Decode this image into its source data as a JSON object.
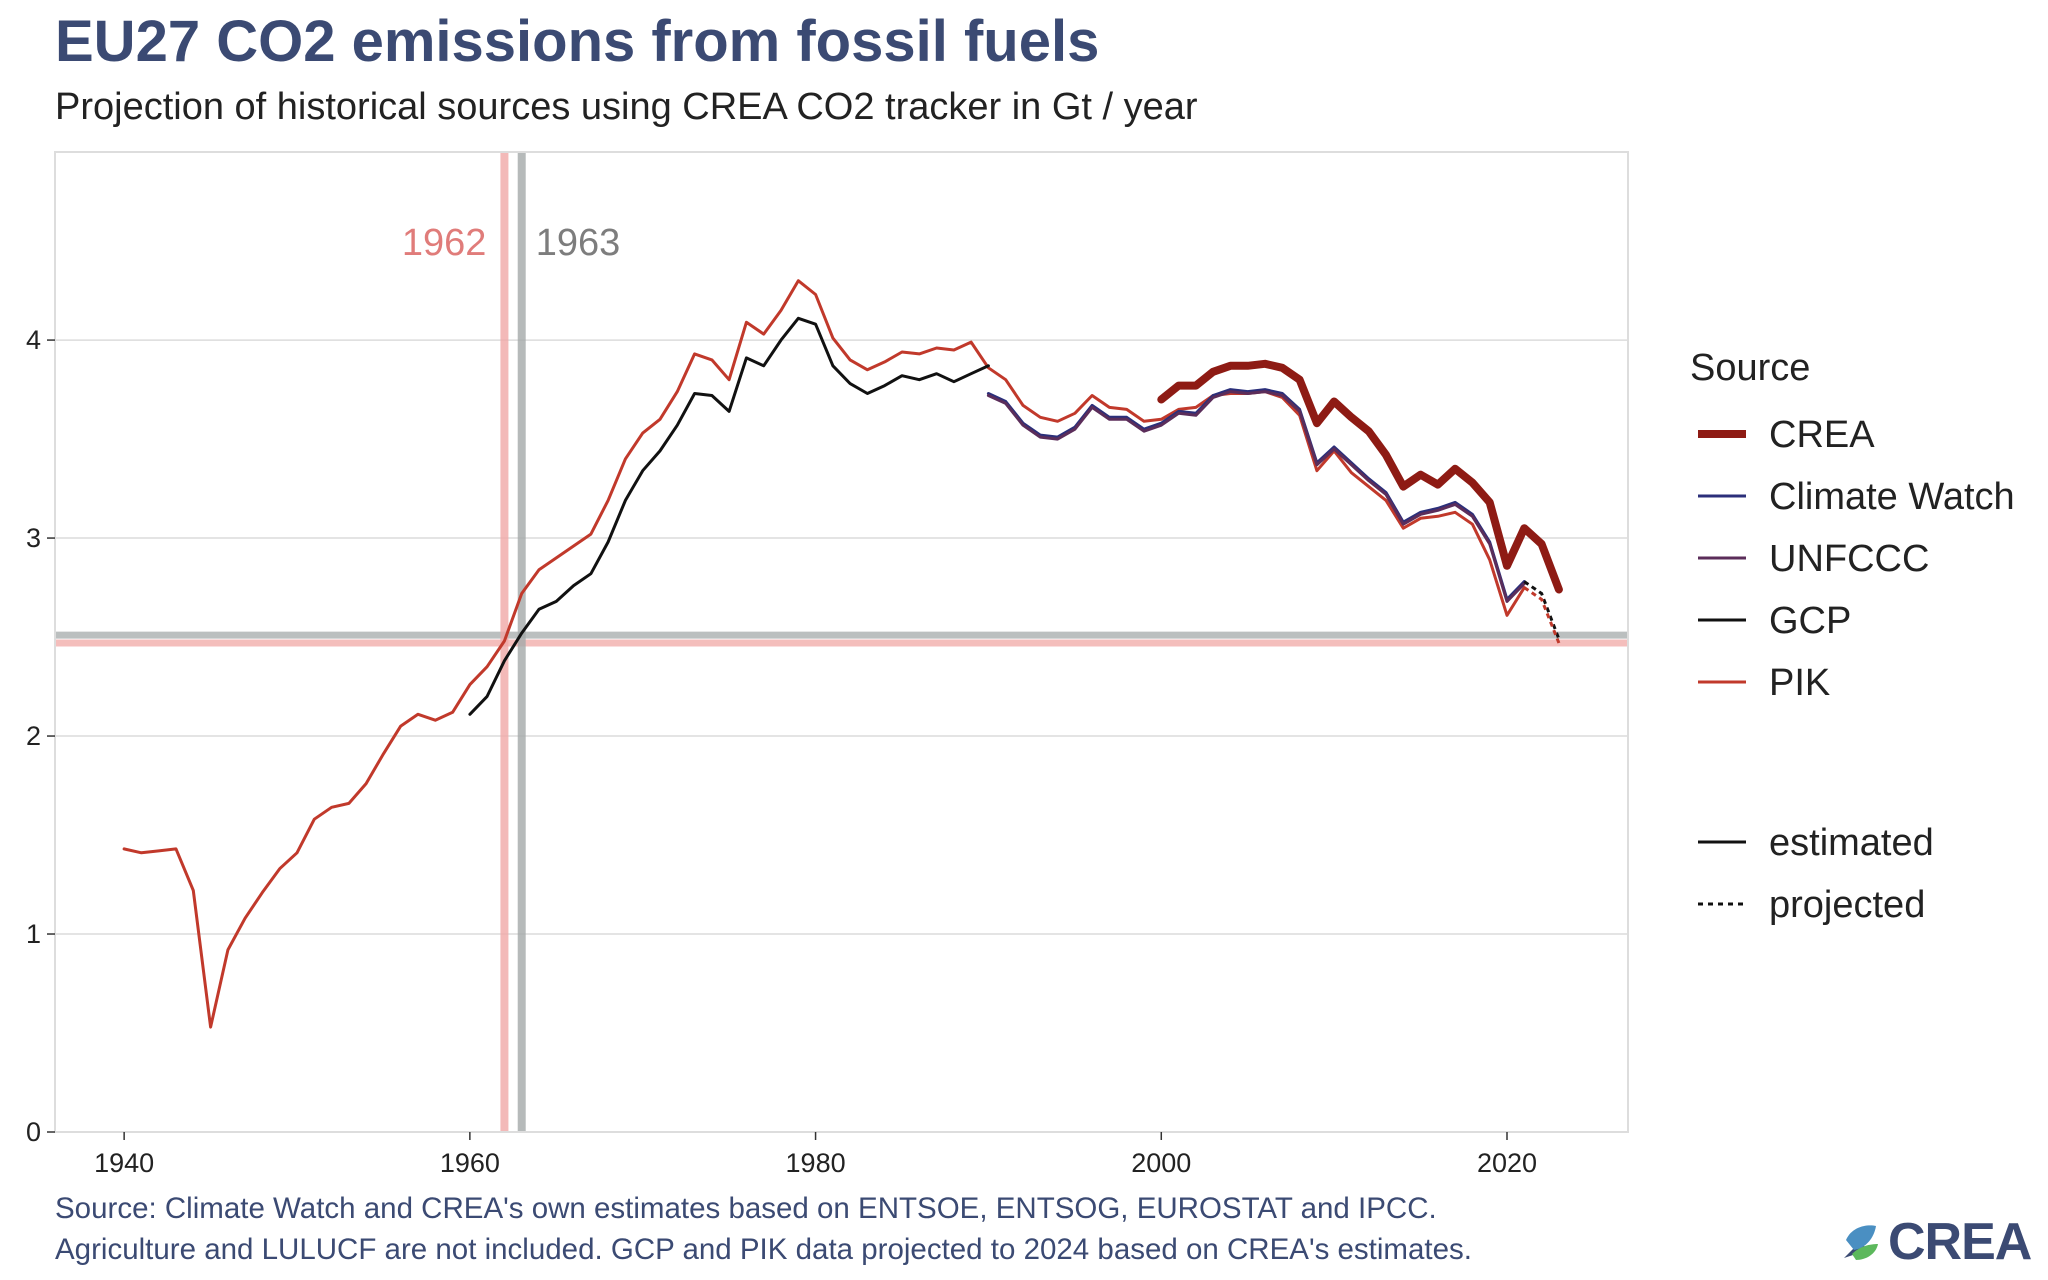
{
  "title": "EU27 CO2 emissions from fossil fuels",
  "subtitle": "Projection of historical sources using CREA CO2 tracker in Gt / year",
  "source_lines": [
    "Source: Climate Watch and CREA's own estimates based on ENTSOE, ENTSOG, EUROSTAT and IPCC.",
    "Agriculture and LULUCF are not included. GCP and PIK data projected to 2024 based on CREA's estimates."
  ],
  "logo": {
    "text": "CREA",
    "icon": "crea-leaf-icon"
  },
  "chart_data": {
    "type": "line",
    "xlim": [
      1936,
      2027
    ],
    "ylim": [
      0,
      4.95
    ],
    "x_ticks": [
      1940,
      1960,
      1980,
      2000,
      2020
    ],
    "y_ticks": [
      0,
      1,
      2,
      3,
      4
    ],
    "grid": true,
    "legend_position": "right",
    "legend_title": "Source",
    "series": [
      {
        "name": "PIK",
        "color": "#c1392b",
        "width": 3,
        "x": [
          1940,
          1941,
          1942,
          1943,
          1944,
          1945,
          1946,
          1947,
          1948,
          1949,
          1950,
          1951,
          1952,
          1953,
          1954,
          1955,
          1956,
          1957,
          1958,
          1959,
          1960,
          1961,
          1962,
          1963,
          1964,
          1965,
          1966,
          1967,
          1968,
          1969,
          1970,
          1971,
          1972,
          1973,
          1974,
          1975,
          1976,
          1977,
          1978,
          1979,
          1980,
          1981,
          1982,
          1983,
          1984,
          1985,
          1986,
          1987,
          1988,
          1989,
          1990,
          1991,
          1992,
          1993,
          1994,
          1995,
          1996,
          1997,
          1998,
          1999,
          2000,
          2001,
          2002,
          2003,
          2004,
          2005,
          2006,
          2007,
          2008,
          2009,
          2010,
          2011,
          2012,
          2013,
          2014,
          2015,
          2016,
          2017,
          2018,
          2019,
          2020,
          2021
        ],
        "y": [
          1.43,
          1.41,
          1.42,
          1.43,
          1.22,
          0.53,
          0.92,
          1.08,
          1.21,
          1.33,
          1.41,
          1.58,
          1.64,
          1.66,
          1.76,
          1.91,
          2.05,
          2.11,
          2.08,
          2.12,
          2.26,
          2.35,
          2.48,
          2.72,
          2.84,
          2.9,
          2.96,
          3.02,
          3.19,
          3.4,
          3.53,
          3.6,
          3.74,
          3.93,
          3.9,
          3.8,
          4.09,
          4.03,
          4.15,
          4.3,
          4.23,
          4.01,
          3.9,
          3.85,
          3.89,
          3.94,
          3.93,
          3.96,
          3.95,
          3.99,
          3.86,
          3.8,
          3.67,
          3.61,
          3.59,
          3.63,
          3.72,
          3.66,
          3.65,
          3.59,
          3.6,
          3.65,
          3.66,
          3.72,
          3.73,
          3.73,
          3.74,
          3.71,
          3.62,
          3.34,
          3.44,
          3.33,
          3.26,
          3.19,
          3.05,
          3.1,
          3.11,
          3.13,
          3.07,
          2.89,
          2.61,
          2.75
        ]
      },
      {
        "name": "GCP",
        "color": "#111111",
        "width": 3,
        "x": [
          1960,
          1961,
          1962,
          1963,
          1964,
          1965,
          1966,
          1967,
          1968,
          1969,
          1970,
          1971,
          1972,
          1973,
          1974,
          1975,
          1976,
          1977,
          1978,
          1979,
          1980,
          1981,
          1982,
          1983,
          1984,
          1985,
          1986,
          1987,
          1988,
          1989,
          1990
        ],
        "y": [
          2.11,
          2.2,
          2.38,
          2.52,
          2.64,
          2.68,
          2.76,
          2.82,
          2.98,
          3.19,
          3.34,
          3.44,
          3.57,
          3.73,
          3.72,
          3.64,
          3.91,
          3.87,
          4.0,
          4.11,
          4.08,
          3.87,
          3.78,
          3.73,
          3.77,
          3.82,
          3.8,
          3.83,
          3.79,
          3.83,
          3.87
        ]
      },
      {
        "name": "Climate Watch",
        "color": "#2b2f7a",
        "width": 3,
        "x": [
          1990,
          1991,
          1992,
          1993,
          1994,
          1995,
          1996,
          1997,
          1998,
          1999,
          2000,
          2001,
          2002,
          2003,
          2004,
          2005,
          2006,
          2007,
          2008,
          2009,
          2010,
          2011,
          2012,
          2013,
          2014,
          2015,
          2016,
          2017,
          2018,
          2019,
          2020,
          2021
        ],
        "y": [
          3.73,
          3.69,
          3.58,
          3.52,
          3.51,
          3.56,
          3.67,
          3.61,
          3.61,
          3.55,
          3.58,
          3.64,
          3.63,
          3.72,
          3.75,
          3.74,
          3.75,
          3.73,
          3.65,
          3.38,
          3.46,
          3.38,
          3.3,
          3.23,
          3.08,
          3.13,
          3.15,
          3.18,
          3.12,
          2.98,
          2.69,
          2.78
        ]
      },
      {
        "name": "UNFCCC",
        "color": "#5b2d5a",
        "width": 3,
        "x": [
          1990,
          1991,
          1992,
          1993,
          1994,
          1995,
          1996,
          1997,
          1998,
          1999,
          2000,
          2001,
          2002,
          2003,
          2004,
          2005,
          2006,
          2007,
          2008,
          2009,
          2010,
          2011,
          2012,
          2013,
          2014,
          2015,
          2016,
          2017,
          2018,
          2019,
          2020,
          2021
        ],
        "y": [
          3.72,
          3.68,
          3.57,
          3.51,
          3.5,
          3.55,
          3.66,
          3.6,
          3.6,
          3.54,
          3.57,
          3.63,
          3.62,
          3.71,
          3.74,
          3.73,
          3.74,
          3.72,
          3.64,
          3.37,
          3.45,
          3.37,
          3.29,
          3.22,
          3.07,
          3.12,
          3.14,
          3.17,
          3.11,
          2.97,
          2.68,
          2.77
        ]
      },
      {
        "name": "CREA",
        "color": "#8e1b14",
        "width": 8,
        "x": [
          2000,
          2001,
          2002,
          2003,
          2004,
          2005,
          2006,
          2007,
          2008,
          2009,
          2010,
          2011,
          2012,
          2013,
          2014,
          2015,
          2016,
          2017,
          2018,
          2019,
          2020,
          2021,
          2022,
          2023
        ],
        "y": [
          3.7,
          3.77,
          3.77,
          3.84,
          3.87,
          3.87,
          3.88,
          3.86,
          3.8,
          3.58,
          3.69,
          3.61,
          3.54,
          3.42,
          3.26,
          3.32,
          3.27,
          3.35,
          3.28,
          3.18,
          2.86,
          3.05,
          2.97,
          2.74
        ]
      }
    ],
    "projected": [
      {
        "series": "GCP",
        "x": [
          2021,
          2022,
          2023
        ],
        "y": [
          2.78,
          2.72,
          2.49
        ],
        "color": "#111111"
      },
      {
        "series": "PIK",
        "x": [
          2021,
          2022,
          2023
        ],
        "y": [
          2.75,
          2.69,
          2.47
        ],
        "color": "#c1392b"
      }
    ],
    "reference_lines": {
      "vertical": [
        {
          "x": 1962,
          "label": "1962",
          "color": "#f0a8a6"
        },
        {
          "x": 1963,
          "label": "1963",
          "color": "#a4a9a9"
        }
      ],
      "horizontal": [
        {
          "y": 2.51,
          "color": "#a4a9a9"
        },
        {
          "y": 2.47,
          "color": "#f0a8a6"
        }
      ]
    },
    "legend_line_types": [
      {
        "label": "estimated",
        "style": "solid"
      },
      {
        "label": "projected",
        "style": "dashed"
      }
    ],
    "annotation_colors": {
      "label_1962": "#e07c7a",
      "label_1963": "#7d7d7d"
    }
  }
}
